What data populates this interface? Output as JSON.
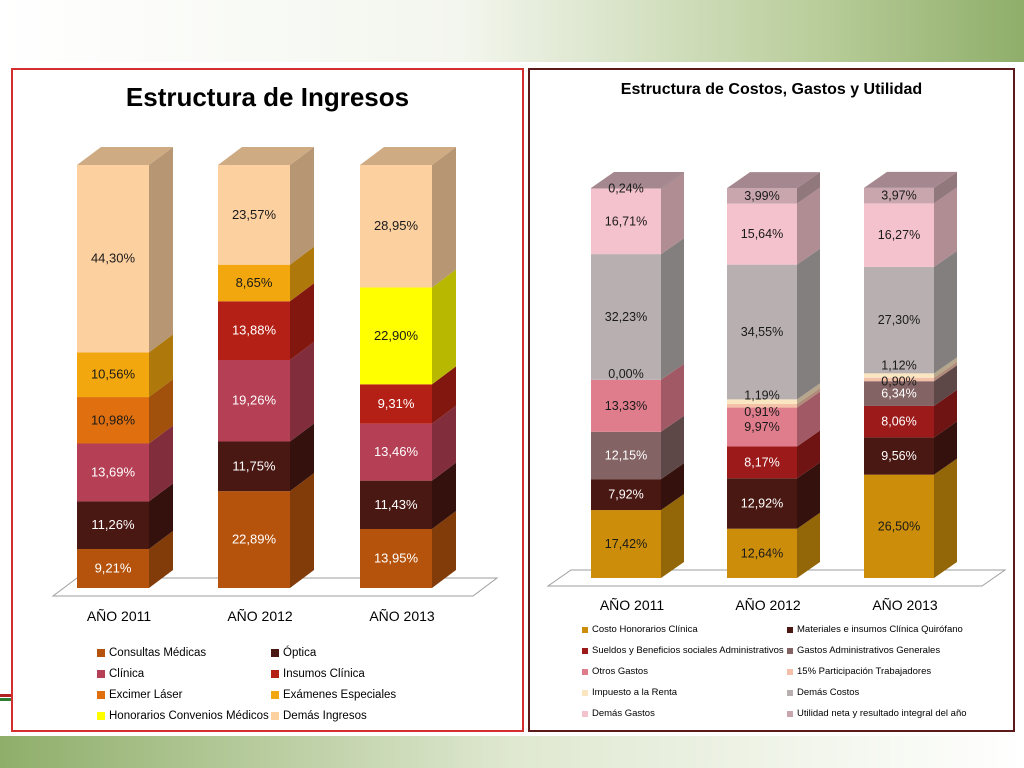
{
  "chart_data": [
    {
      "type": "bar",
      "title": "Estructura de Ingresos",
      "categories": [
        "AÑO 2011",
        "AÑO 2012",
        "AÑO 2013"
      ],
      "ylim": [
        0,
        100
      ],
      "series": [
        {
          "name": "Consultas Médicas",
          "color": "#b5530c",
          "values": [
            9.21,
            22.89,
            13.95
          ],
          "labels": [
            "9,21%",
            "22,89%",
            "13,95%"
          ]
        },
        {
          "name": "Óptica",
          "color": "#4a1813",
          "values": [
            11.26,
            11.75,
            11.43
          ],
          "labels": [
            "11,26%",
            "11,75%",
            "11,43%"
          ]
        },
        {
          "name": "Clínica",
          "color": "#b53f54",
          "values": [
            13.69,
            19.26,
            13.46
          ],
          "labels": [
            "13,69%",
            "19,26%",
            "13,46%"
          ]
        },
        {
          "name": "Insumos Clínica",
          "color": "#b52016",
          "values": [
            0,
            13.88,
            9.31
          ],
          "labels": [
            "",
            "13,88%",
            "9,31%"
          ]
        },
        {
          "name": "Excimer Láser",
          "color": "#e0700f",
          "values": [
            10.98,
            0,
            0
          ],
          "labels": [
            "10,98%",
            "",
            ""
          ]
        },
        {
          "name": "Exámenes Especiales",
          "color": "#f3a70e",
          "values": [
            10.56,
            8.65,
            0
          ],
          "labels": [
            "10,56%",
            "8,65%",
            ""
          ]
        },
        {
          "name": "Honorarios Convenios Médicos",
          "color": "#ffff00",
          "values": [
            0,
            0,
            22.9
          ],
          "labels": [
            "",
            "",
            "22,90%"
          ]
        },
        {
          "name": "Demás Ingresos",
          "color": "#fdd0a0",
          "values": [
            44.3,
            23.57,
            28.95
          ],
          "labels": [
            "44,30%",
            "23,57%",
            "28,95%"
          ]
        }
      ],
      "legend": "bottom"
    },
    {
      "type": "bar",
      "title": "Estructura de Costos, Gastos y Utilidad",
      "categories": [
        "AÑO 2011",
        "AÑO 2012",
        "AÑO 2013"
      ],
      "ylim": [
        0,
        100
      ],
      "series": [
        {
          "name": "Costo Honorarios Clínica",
          "color": "#cc8e0a",
          "values": [
            17.42,
            12.64,
            26.5
          ],
          "labels": [
            "17,42%",
            "12,64%",
            "26,50%"
          ]
        },
        {
          "name": "Materiales e insumos Clínica Quirófano",
          "color": "#4a1813",
          "values": [
            7.92,
            12.92,
            9.56
          ],
          "labels": [
            "7,92%",
            "12,92%",
            "9,56%"
          ]
        },
        {
          "name": "Sueldos y Beneficios sociales Administrativos",
          "color": "#9c1a1a",
          "values": [
            0,
            8.17,
            8.06
          ],
          "labels": [
            "",
            "8,17%",
            "8,06%"
          ]
        },
        {
          "name": "Gastos Administrativos Generales",
          "color": "#836363",
          "values": [
            12.15,
            0,
            6.34
          ],
          "labels": [
            "12,15%",
            "",
            "6,34%"
          ]
        },
        {
          "name": "Otros Gastos",
          "color": "#e07d8c",
          "values": [
            13.33,
            9.97,
            0
          ],
          "labels": [
            "13,33%",
            "9,97%",
            ""
          ]
        },
        {
          "name": "15% Participación Trabajadores",
          "color": "#f4c1a8",
          "values": [
            0,
            0.91,
            0.9
          ],
          "labels": [
            "0,00%",
            "0,91%",
            "0,90%"
          ]
        },
        {
          "name": "Impuesto a la Renta",
          "color": "#fbe6c2",
          "values": [
            0,
            1.19,
            1.12
          ],
          "labels": [
            "",
            "1,19%",
            "1,12%"
          ]
        },
        {
          "name": "Demás Costos",
          "color": "#b8b0b0",
          "values": [
            32.23,
            34.55,
            27.3
          ],
          "labels": [
            "32,23%",
            "34,55%",
            "27,30%"
          ]
        },
        {
          "name": "Demás Gastos",
          "color": "#f4c2cc",
          "values": [
            16.71,
            15.64,
            16.27
          ],
          "labels": [
            "16,71%",
            "15,64%",
            "16,27%"
          ]
        },
        {
          "name": "Utilidad neta y resultado integral del año",
          "color": "#c9a6ae",
          "values": [
            0.24,
            3.99,
            3.97
          ],
          "labels": [
            "0,24%",
            "3,99%",
            "3,97%"
          ]
        }
      ],
      "legend": "bottom"
    }
  ]
}
